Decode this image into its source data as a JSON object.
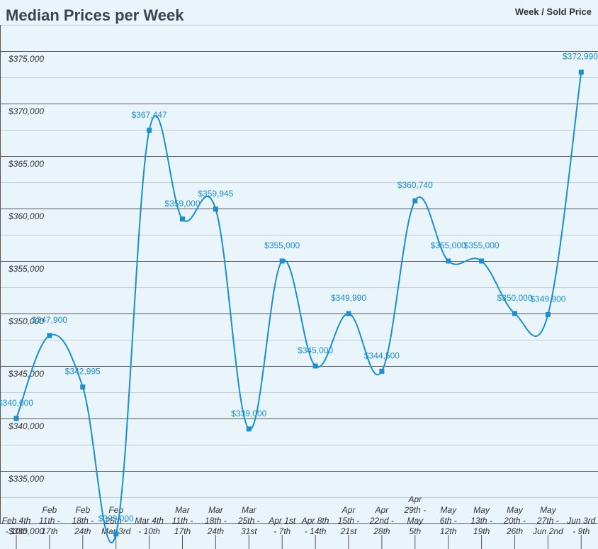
{
  "chart_data": {
    "type": "line",
    "title": "Median Prices per Week",
    "legend": "Week / Sold Price",
    "legend_position": "top-right",
    "line_color": "#1a8fd0",
    "grid": true,
    "ylim": [
      330000,
      377500
    ],
    "yticks": [
      {
        "value": 330000,
        "label": "$330,000"
      },
      {
        "value": 335000,
        "label": "$335,000"
      },
      {
        "value": 340000,
        "label": "$340,000"
      },
      {
        "value": 345000,
        "label": "$345,000"
      },
      {
        "value": 350000,
        "label": "$350,000"
      },
      {
        "value": 355000,
        "label": "$355,000"
      },
      {
        "value": 360000,
        "label": "$360,000"
      },
      {
        "value": 365000,
        "label": "$365,000"
      },
      {
        "value": 370000,
        "label": "$370,000"
      },
      {
        "value": 375000,
        "label": "$375,000"
      }
    ],
    "categories": [
      [
        "Feb 4th",
        "- 10th"
      ],
      [
        "Feb",
        "11th -",
        "17th"
      ],
      [
        "Feb",
        "18th -",
        "24th"
      ],
      [
        "Feb",
        "25th -",
        "Mar 3rd"
      ],
      [
        "Mar 4th",
        "- 10th"
      ],
      [
        "Mar",
        "11th -",
        "17th"
      ],
      [
        "Mar",
        "18th -",
        "24th"
      ],
      [
        "Mar",
        "25th -",
        "31st"
      ],
      [
        "Apr 1st",
        "- 7th"
      ],
      [
        "Apr 8th",
        "- 14th"
      ],
      [
        "Apr",
        "15th -",
        "21st"
      ],
      [
        "Apr",
        "22nd -",
        "28th"
      ],
      [
        "Apr",
        "29th -",
        "May",
        "5th"
      ],
      [
        "May",
        "6th -",
        "12th"
      ],
      [
        "May",
        "13th -",
        "19th"
      ],
      [
        "May",
        "20th -",
        "26th"
      ],
      [
        "May",
        "27th -",
        "Jun 2nd"
      ],
      [
        "Jun 3rd",
        "- 9th"
      ]
    ],
    "values": [
      340000,
      347900,
      342995,
      329000,
      367447,
      359000,
      359945,
      339000,
      355000,
      345000,
      349990,
      344500,
      360740,
      355000,
      355000,
      350000,
      349900,
      372990
    ],
    "data_labels": [
      "$340,000",
      "$347,900",
      "$342,995",
      "$329,000",
      "$367,447",
      "$359,000",
      "$359,945",
      "$339,000",
      "$355,000",
      "$345,000",
      "$349,990",
      "$344,500",
      "$360,740",
      "$355,000",
      "$355,000",
      "$350,000",
      "$349,900",
      "$372,990"
    ]
  }
}
